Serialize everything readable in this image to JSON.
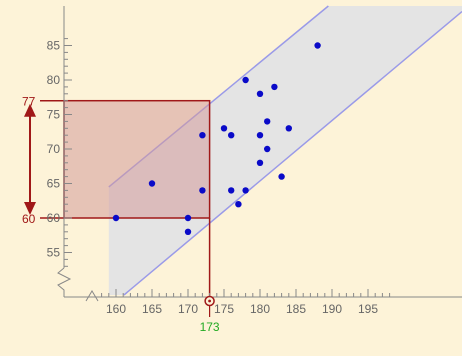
{
  "chart_data": {
    "type": "scatter",
    "title": "",
    "xlabel": "",
    "ylabel": "",
    "xlim": [
      157,
      199
    ],
    "ylim": [
      50,
      86
    ],
    "x_ticks": [
      160,
      165,
      170,
      175,
      180,
      185,
      190,
      195
    ],
    "y_ticks": [
      55,
      60,
      65,
      70,
      75,
      80,
      85
    ],
    "grid": false,
    "axis_break_y": true,
    "points": [
      {
        "x": 160,
        "y": 60
      },
      {
        "x": 165,
        "y": 65
      },
      {
        "x": 170,
        "y": 60
      },
      {
        "x": 170,
        "y": 58
      },
      {
        "x": 172,
        "y": 72
      },
      {
        "x": 172,
        "y": 64
      },
      {
        "x": 175,
        "y": 73
      },
      {
        "x": 176,
        "y": 72
      },
      {
        "x": 176,
        "y": 64
      },
      {
        "x": 177,
        "y": 62
      },
      {
        "x": 178,
        "y": 80
      },
      {
        "x": 178,
        "y": 64
      },
      {
        "x": 180,
        "y": 78
      },
      {
        "x": 180,
        "y": 72
      },
      {
        "x": 180,
        "y": 68
      },
      {
        "x": 181,
        "y": 74
      },
      {
        "x": 181,
        "y": 70
      },
      {
        "x": 182,
        "y": 79
      },
      {
        "x": 183,
        "y": 66
      },
      {
        "x": 184,
        "y": 73
      },
      {
        "x": 188,
        "y": 85
      }
    ],
    "prediction_band": {
      "x_start": 159,
      "upper": [
        [
          159,
          64.5
        ],
        [
          184,
          86
        ]
      ],
      "lower": [
        [
          159,
          47
        ],
        [
          199,
          82
        ]
      ]
    },
    "prediction": {
      "x": 173,
      "x_label": "173",
      "y_low": 60,
      "y_high": 77,
      "y_low_label": "60",
      "y_high_label": "77"
    },
    "colors": {
      "background": "#fdf3d8",
      "band_fill": "#e4e4e4",
      "band_edge": "#9a9ae8",
      "point": "#0a0ac8",
      "interval": "#a01818",
      "interval_fill": "#d49a9a",
      "x_marker_label": "#22aa22",
      "axis": "#888888"
    }
  }
}
